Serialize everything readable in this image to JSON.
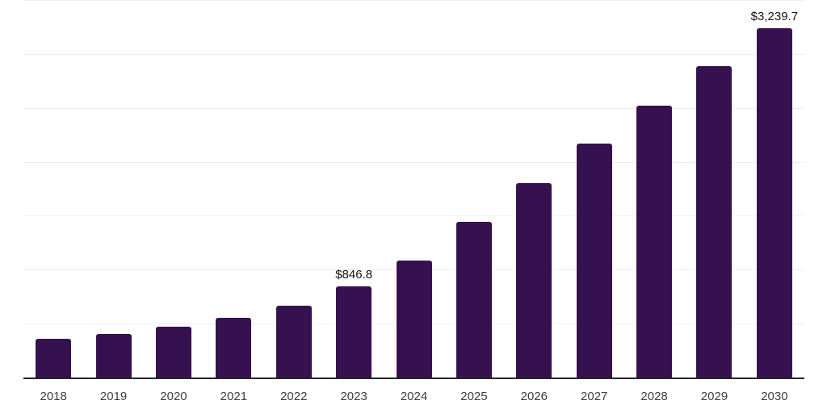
{
  "chart_data": {
    "type": "bar",
    "title": "",
    "xlabel": "",
    "ylabel": "",
    "categories": [
      "2018",
      "2019",
      "2020",
      "2021",
      "2022",
      "2023",
      "2024",
      "2025",
      "2026",
      "2027",
      "2028",
      "2029",
      "2030"
    ],
    "values": [
      358,
      406,
      473,
      556,
      669,
      846.8,
      1085,
      1445,
      1801,
      2168,
      2520,
      2889,
      3239.7
    ],
    "data_labels": [
      "",
      "",
      "",
      "",
      "",
      "$846.8",
      "",
      "",
      "",
      "",
      "",
      "",
      "$3,239.7"
    ],
    "ylim": [
      0,
      3500
    ],
    "gridline_values": [
      500,
      1000,
      1500,
      2000,
      2500,
      3000,
      3500
    ],
    "grid": "horizontal",
    "legend": "none",
    "colors": {
      "bar": "#361150",
      "axis_line": "#262626",
      "gridline": "#efefef",
      "data_label": "#151515",
      "tick_label": "#3d3d3d",
      "background": "#ffffff"
    }
  }
}
